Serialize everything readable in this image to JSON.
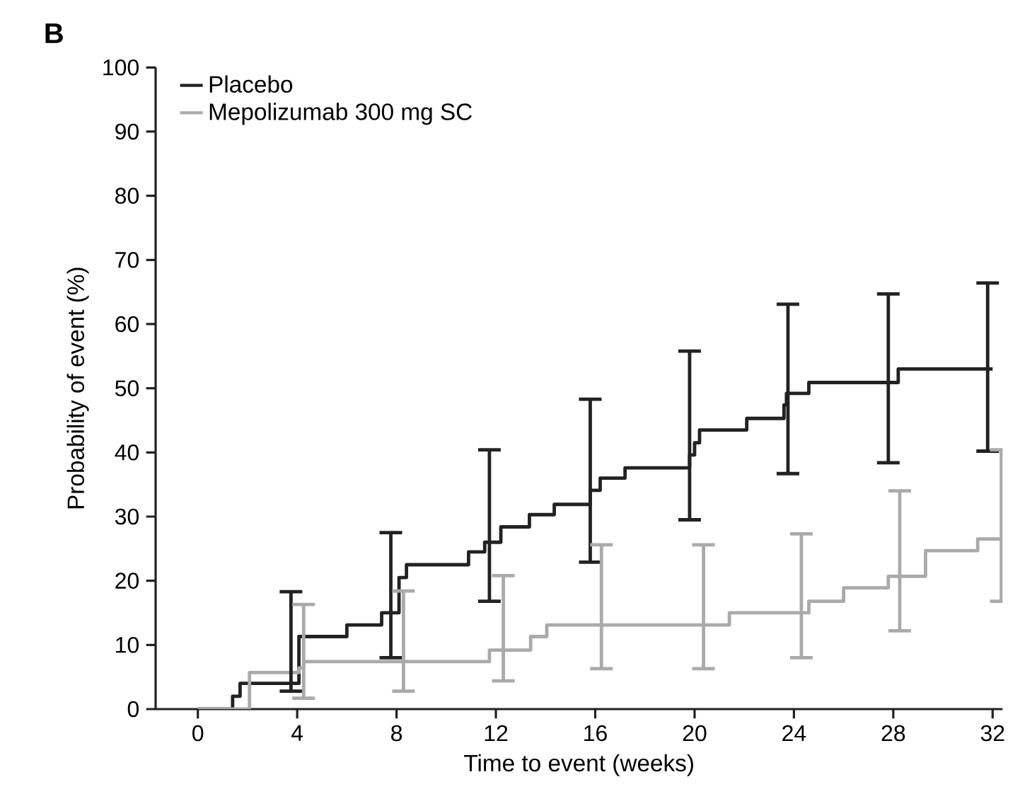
{
  "chart_data": {
    "type": "step",
    "title": "B",
    "xlabel": "Time to event (weeks)",
    "ylabel": "Probability of event (%)",
    "xlim": [
      -1.7,
      32.4
    ],
    "xticks": [
      0,
      4,
      8,
      12,
      16,
      20,
      24,
      28,
      32
    ],
    "ylim": [
      0,
      100
    ],
    "yticks": [
      0,
      10,
      20,
      30,
      40,
      50,
      60,
      70,
      80,
      90,
      100
    ],
    "grid": false,
    "legend": "top left",
    "marker": "none",
    "line_style": "solid",
    "series": [
      {
        "name": "Placebo",
        "color": "#222222",
        "x": [
          0,
          1.4,
          1.7,
          3.75,
          4.07,
          6.0,
          7.4,
          7.77,
          8.1,
          8.4,
          10.9,
          11.55,
          11.74,
          12.2,
          13.35,
          14.35,
          15.8,
          16.2,
          17.2,
          19.8,
          20.0,
          20.2,
          22.1,
          23.6,
          23.7,
          23.76,
          24.6,
          27.8,
          28.2,
          31.8,
          32
        ],
        "values": [
          0,
          2.0,
          4.0,
          4.0,
          11.3,
          13.1,
          15.0,
          15.0,
          20.5,
          22.5,
          24.5,
          26.0,
          26.0,
          28.4,
          30.3,
          31.9,
          34.1,
          36.0,
          37.6,
          39.6,
          41.5,
          43.5,
          45.3,
          47.4,
          49.2,
          49.2,
          50.9,
          50.9,
          53.0,
          53.0,
          53.0
        ],
        "errors": [
          null,
          null,
          null,
          [
            2.8,
            18.3
          ],
          null,
          null,
          null,
          [
            8.0,
            27.5
          ],
          null,
          null,
          null,
          null,
          [
            16.8,
            40.4
          ],
          null,
          null,
          null,
          [
            22.9,
            48.3
          ],
          null,
          null,
          [
            29.5,
            55.8
          ],
          null,
          null,
          null,
          null,
          null,
          [
            36.7,
            63.1
          ],
          null,
          [
            38.4,
            64.7
          ],
          null,
          [
            40.2,
            66.4
          ],
          null
        ]
      },
      {
        "name": "Mepolizumab 300 mg SC",
        "color": "#aaaaaa",
        "x": [
          0,
          2.08,
          4.07,
          4.26,
          8.28,
          11.74,
          12.3,
          13.4,
          14.05,
          16.25,
          20.36,
          21.4,
          24.3,
          24.6,
          26.0,
          27.8,
          28.26,
          29.3,
          31.4,
          32.35
        ],
        "values": [
          0,
          5.7,
          6.4,
          7.4,
          7.4,
          9.2,
          9.2,
          11.3,
          13.1,
          13.1,
          13.1,
          15.0,
          15.0,
          16.8,
          18.9,
          20.7,
          20.7,
          24.7,
          26.5,
          26.5
        ],
        "errors": [
          null,
          null,
          null,
          [
            1.7,
            16.3
          ],
          [
            2.8,
            18.4
          ],
          null,
          [
            4.4,
            20.8
          ],
          null,
          null,
          [
            6.3,
            25.6
          ],
          [
            6.3,
            25.6
          ],
          null,
          [
            8.0,
            27.3
          ],
          null,
          null,
          null,
          [
            12.2,
            34.0
          ],
          null,
          null,
          [
            16.8,
            40.4
          ]
        ]
      }
    ]
  }
}
